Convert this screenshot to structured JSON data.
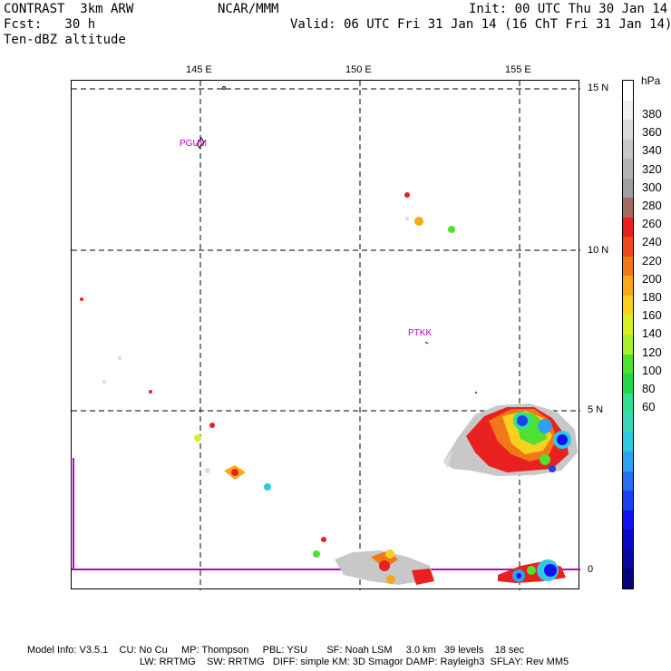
{
  "header": {
    "model": "CONTRAST  3km ARW",
    "org": "NCAR/MMM",
    "init": "Init: 00 UTC Thu 30 Jan 14",
    "fcst": "Fcst:   30 h",
    "valid": "Valid: 06 UTC Fri 31 Jan 14 (16 ChT Fri 31 Jan 14)",
    "field": "Ten-dBZ altitude"
  },
  "axes": {
    "lon_labels": [
      "145 E",
      "150 E",
      "155 E"
    ],
    "lat_labels": [
      "15 N",
      "10 N",
      "5 N",
      "0"
    ]
  },
  "stations": [
    {
      "name": "PGUM"
    },
    {
      "name": "PTKK"
    }
  ],
  "colorbar": {
    "unit": "hPa",
    "labels": [
      "380",
      "360",
      "340",
      "320",
      "300",
      "280",
      "260",
      "240",
      "220",
      "200",
      "180",
      "160",
      "140",
      "120",
      "100",
      "80",
      "60"
    ],
    "colors": [
      "#ffffff",
      "#f0f0f0",
      "#dcdcdc",
      "#c8c8c8",
      "#b4b4b4",
      "#a0a0a0",
      "#a06a60",
      "#e82020",
      "#f04820",
      "#f07818",
      "#f8a818",
      "#f8d020",
      "#d8f020",
      "#a8f028",
      "#50e030",
      "#20d848",
      "#30e090",
      "#38d8b8",
      "#30c8e0",
      "#30a0f0",
      "#2870f0",
      "#1c40f0",
      "#1010f0",
      "#0808c8",
      "#0808a0",
      "#040478"
    ]
  },
  "footer": {
    "line1": "Model Info: V3.5.1    CU: No Cu     MP: Thompson     PBL: YSU       SF: Noah LSM     3.0 km   39 levels    18 sec",
    "line2": "LW: RRTMG    SW: RRTMG   DIFF: simple KM: 3D Smagor DAMP: Rayleigh3  SFLAY: Rev MM5"
  }
}
